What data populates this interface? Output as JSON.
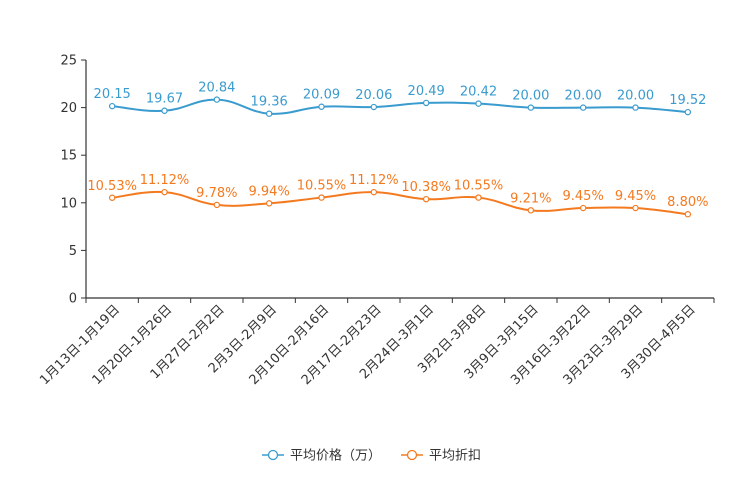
{
  "chart_data": {
    "type": "line",
    "title": "",
    "xlabel": "",
    "ylabel": "",
    "ylim": [
      0,
      25
    ],
    "yticks": [
      0,
      5,
      10,
      15,
      20,
      25
    ],
    "grid": false,
    "legend_position": "bottom-center",
    "categories": [
      "1月13日-1月19日",
      "1月20日-1月26日",
      "1月27日-2月2日",
      "2月3日-2月9日",
      "2月10日-2月16日",
      "2月17日-2月23日",
      "2月24日-3月1日",
      "3月2日-3月8日",
      "3月9日-3月15日",
      "3月16日-3月22日",
      "3月23日-3月29日",
      "3月30日-4月5日"
    ],
    "series": [
      {
        "name": "平均价格（万）",
        "color": "#3a9bcf",
        "values": [
          20.15,
          19.67,
          20.84,
          19.36,
          20.09,
          20.06,
          20.49,
          20.42,
          20.0,
          20.0,
          20.0,
          19.52
        ],
        "labels": [
          "20.15",
          "19.67",
          "20.84",
          "19.36",
          "20.09",
          "20.06",
          "20.49",
          "20.42",
          "20.00",
          "20.00",
          "20.00",
          "19.52"
        ]
      },
      {
        "name": "平均折扣",
        "color": "#f47a20",
        "values": [
          10.53,
          11.12,
          9.78,
          9.94,
          10.55,
          11.12,
          10.38,
          10.55,
          9.21,
          9.45,
          9.45,
          8.8
        ],
        "labels": [
          "10.53%",
          "11.12%",
          "9.78%",
          "9.94%",
          "10.55%",
          "11.12%",
          "10.38%",
          "10.55%",
          "9.21%",
          "9.45%",
          "9.45%",
          "8.80%"
        ]
      }
    ]
  }
}
